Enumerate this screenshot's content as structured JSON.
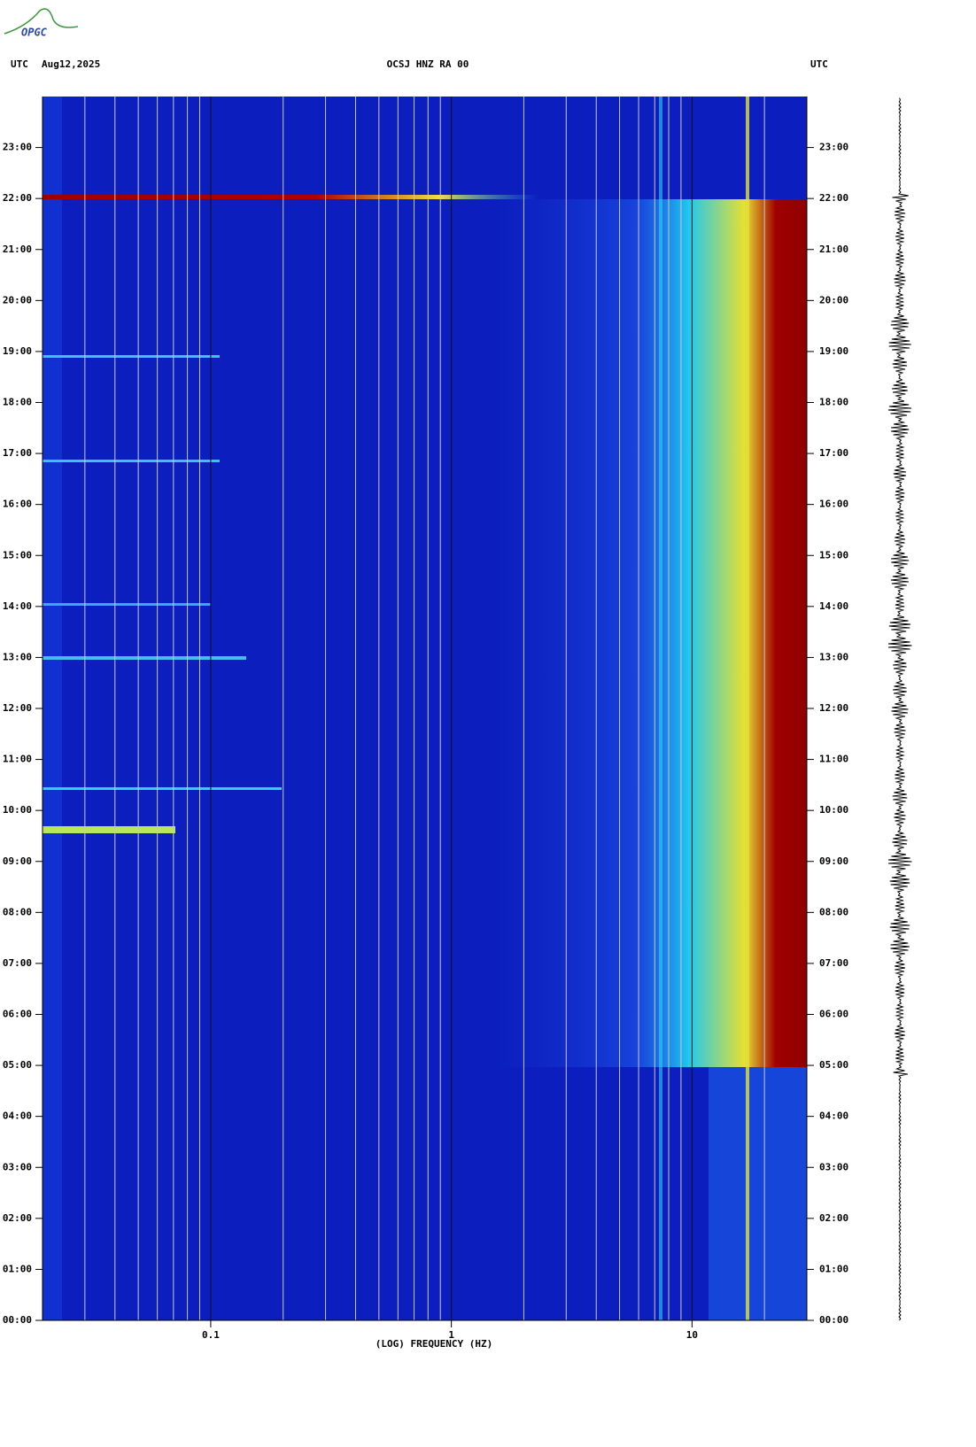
{
  "header": {
    "left_label": "UTC",
    "date": "Aug12,2025",
    "station": "OCSJ HNZ RA 00",
    "right_label": "UTC",
    "logo": "OPGC"
  },
  "chart_data": {
    "type": "spectrogram",
    "xlabel": "(LOG) FREQUENCY (HZ)",
    "xscale": "log",
    "xlim": [
      0.02,
      30
    ],
    "xticks": [
      0.1,
      1,
      10
    ],
    "x_minor_grid": [
      0.03,
      0.04,
      0.05,
      0.06,
      0.07,
      0.08,
      0.09,
      0.2,
      0.3,
      0.4,
      0.5,
      0.6,
      0.7,
      0.8,
      0.9,
      2,
      3,
      4,
      5,
      6,
      7,
      8,
      9,
      20
    ],
    "ylim": [
      0,
      24
    ],
    "yticks": [
      {
        "value": 0,
        "label": "00:00"
      },
      {
        "value": 1,
        "label": "01:00"
      },
      {
        "value": 2,
        "label": "02:00"
      },
      {
        "value": 3,
        "label": "03:00"
      },
      {
        "value": 4,
        "label": "04:00"
      },
      {
        "value": 5,
        "label": "05:00"
      },
      {
        "value": 6,
        "label": "06:00"
      },
      {
        "value": 7,
        "label": "07:00"
      },
      {
        "value": 8,
        "label": "08:00"
      },
      {
        "value": 9,
        "label": "09:00"
      },
      {
        "value": 10,
        "label": "10:00"
      },
      {
        "value": 11,
        "label": "11:00"
      },
      {
        "value": 12,
        "label": "12:00"
      },
      {
        "value": 13,
        "label": "13:00"
      },
      {
        "value": 14,
        "label": "14:00"
      },
      {
        "value": 15,
        "label": "15:00"
      },
      {
        "value": 16,
        "label": "16:00"
      },
      {
        "value": 17,
        "label": "17:00"
      },
      {
        "value": 18,
        "label": "18:00"
      },
      {
        "value": 19,
        "label": "19:00"
      },
      {
        "value": 20,
        "label": "20:00"
      },
      {
        "value": 21,
        "label": "21:00"
      },
      {
        "value": 22,
        "label": "22:00"
      },
      {
        "value": 23,
        "label": "23:00"
      }
    ]
  }
}
